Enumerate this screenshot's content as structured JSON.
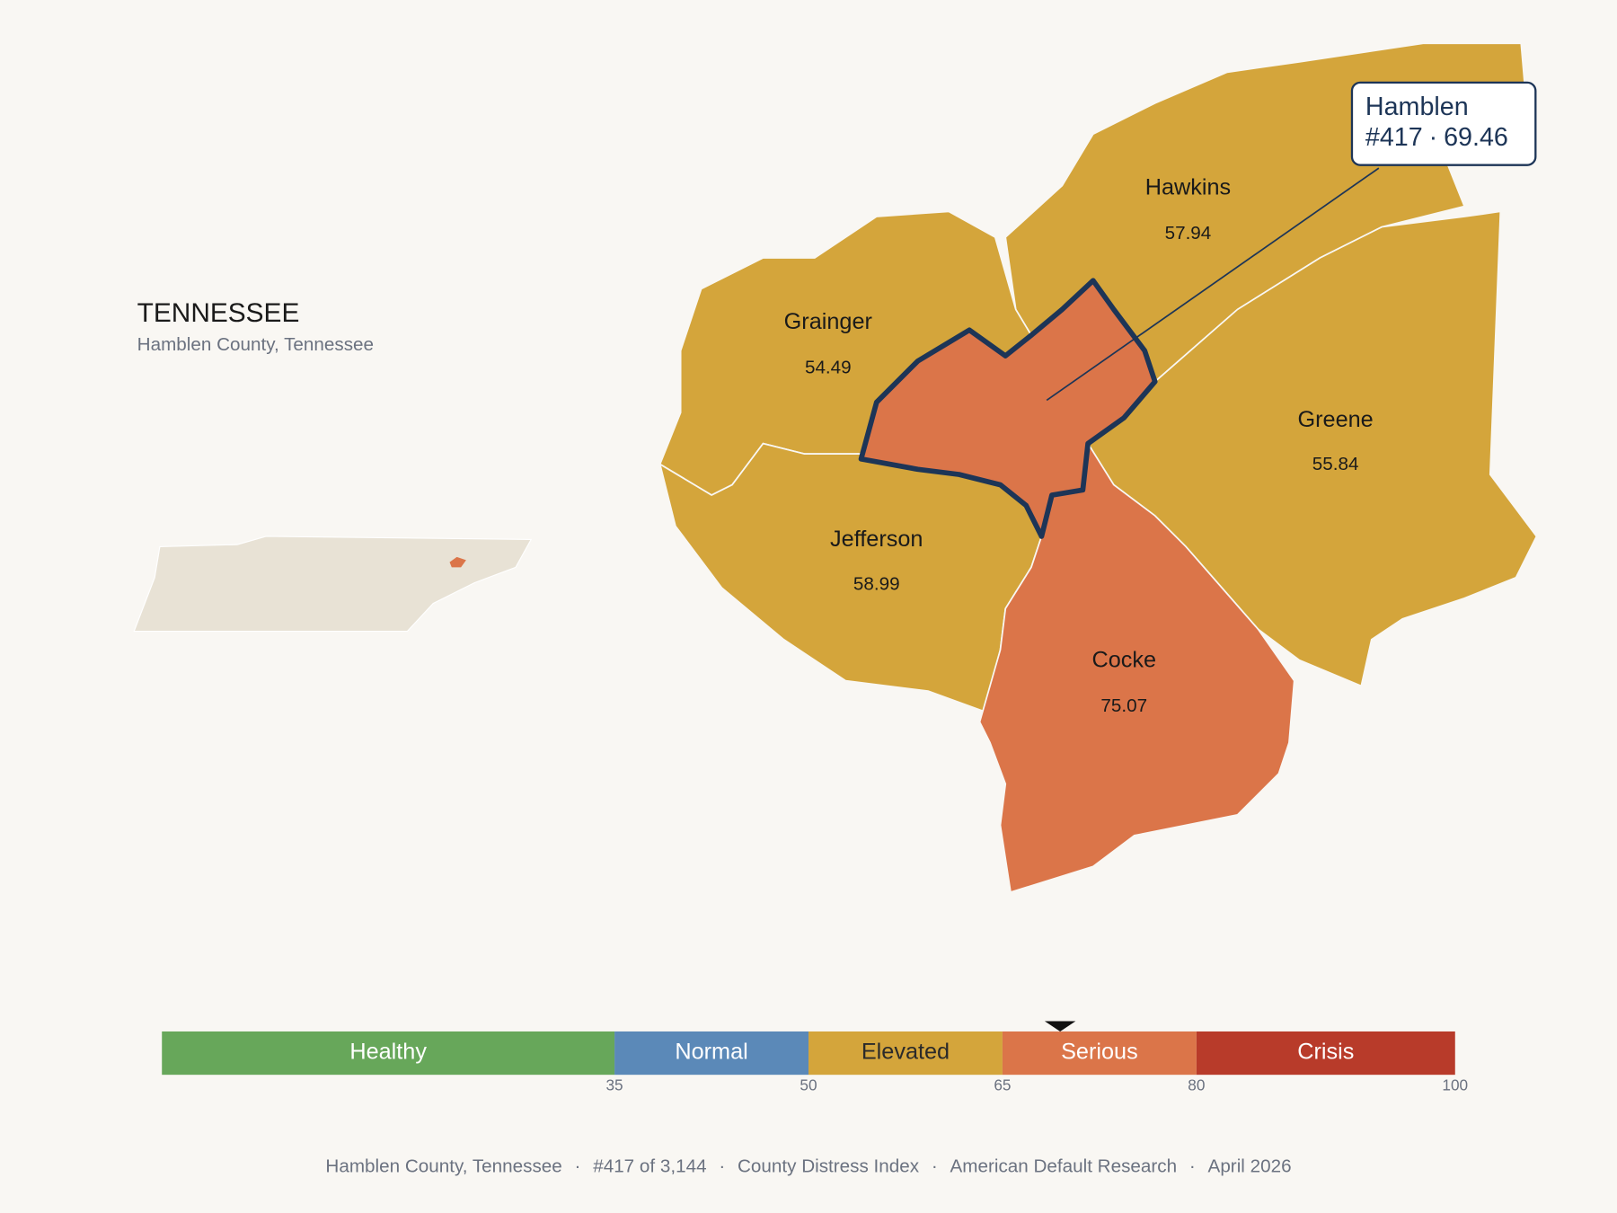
{
  "header": {
    "state": "TENNESSEE",
    "subtitle": "Hamblen County, Tennessee"
  },
  "map": {
    "counties": [
      {
        "name": "Hawkins",
        "value": 57.94,
        "color": "#D4A53B"
      },
      {
        "name": "Grainger",
        "value": 54.49,
        "color": "#D4A53B"
      },
      {
        "name": "Greene",
        "value": 55.84,
        "color": "#D4A53B"
      },
      {
        "name": "Jefferson",
        "value": 58.99,
        "color": "#D4A53B"
      },
      {
        "name": "Cocke",
        "value": 75.07,
        "color": "#DB7549"
      }
    ]
  },
  "callout": {
    "name": "Hamblen",
    "rank": "#417",
    "value": 69.46,
    "color": "#DB7549",
    "outline": "#1D3557"
  },
  "scale": {
    "lim": [
      0,
      100
    ],
    "ticks": [
      35,
      50,
      65,
      80,
      100
    ],
    "marker": 69.46,
    "bands": [
      {
        "name": "Healthy",
        "color": "#67A75A",
        "text_color": "#ffffff"
      },
      {
        "name": "Normal",
        "color": "#5B89B8",
        "text_color": "#ffffff"
      },
      {
        "name": "Elevated",
        "color": "#D4A53B",
        "text_color": "#2a2a2a"
      },
      {
        "name": "Serious",
        "color": "#DB7549",
        "text_color": "#ffffff"
      },
      {
        "name": "Crisis",
        "color": "#B83B2A",
        "text_color": "#ffffff"
      }
    ]
  },
  "footer": {
    "separator": "·",
    "items": [
      "Hamblen County, Tennessee",
      "#417 of 3,144",
      "County Distress Index",
      "American Default Research",
      "April 2026"
    ]
  }
}
